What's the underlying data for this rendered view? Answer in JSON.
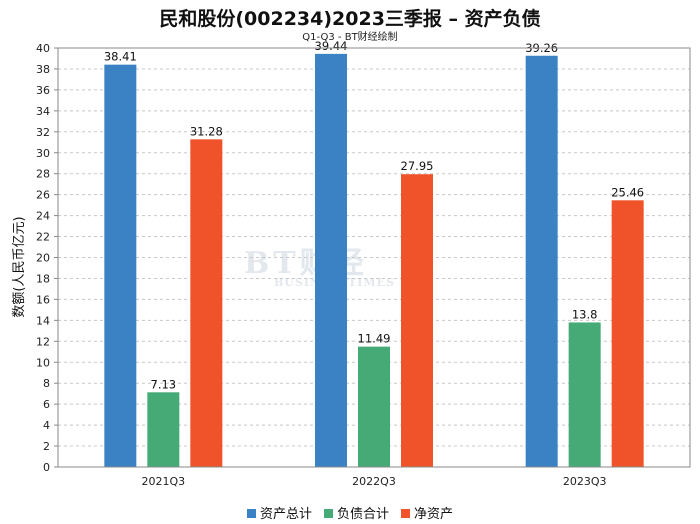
{
  "title": "民和股份(002234)2023三季报 – 资产负债",
  "subtitle": "Q1-Q3 - BT财经绘制",
  "watermark": {
    "main": "BT财经",
    "sub": "BUSINESSTIMES"
  },
  "chart_data": {
    "type": "bar",
    "categories": [
      "2021Q3",
      "2022Q3",
      "2023Q3"
    ],
    "series": [
      {
        "name": "资产总计",
        "color": "#3a82c4",
        "values": [
          38.41,
          39.44,
          39.26
        ]
      },
      {
        "name": "负债合计",
        "color": "#45aa75",
        "values": [
          7.13,
          11.49,
          13.8
        ]
      },
      {
        "name": "净资产",
        "color": "#f0532a",
        "values": [
          31.28,
          27.95,
          25.46
        ]
      }
    ],
    "ylabel": "数额(人民币亿元)",
    "ylim": [
      0,
      40
    ],
    "yticks": [
      0,
      2,
      4,
      6,
      8,
      10,
      12,
      14,
      16,
      18,
      20,
      22,
      24,
      26,
      28,
      30,
      32,
      34,
      36,
      38,
      40
    ],
    "grid": true,
    "legend": "bottom"
  }
}
